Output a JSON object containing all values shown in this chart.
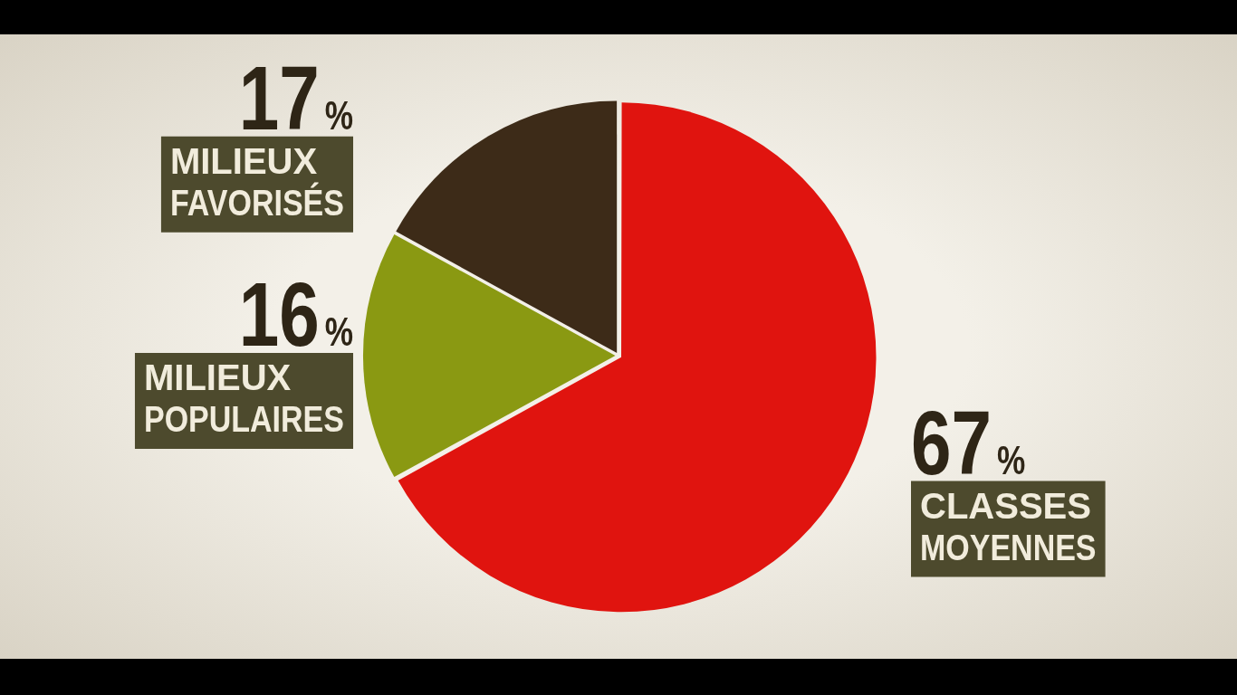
{
  "chart_data": {
    "type": "pie",
    "categories": [
      "CLASSES MOYENNES",
      "MILIEUX POPULAIRES",
      "MILIEUX FAVORISÉS"
    ],
    "values": [
      67,
      16,
      17
    ],
    "colors": [
      "#e0140f",
      "#8a9912",
      "#3d2b18"
    ],
    "value_labels": [
      "67%",
      "16%",
      "17%"
    ],
    "legend": false
  }
}
